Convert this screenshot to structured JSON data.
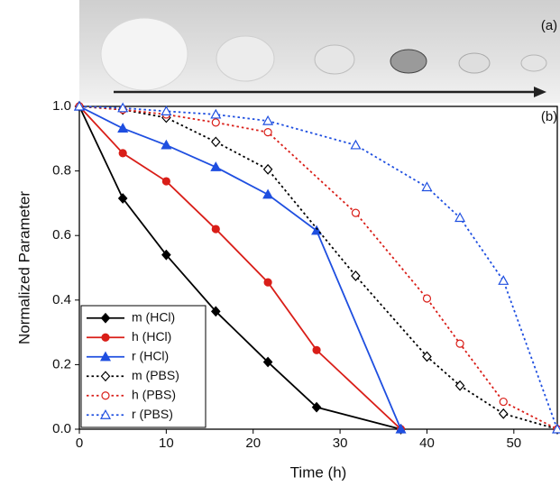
{
  "chart_data": {
    "type": "line",
    "xlabel": "Time (h)",
    "ylabel": "Normalized Parameter",
    "annotations": [
      "(a)",
      "(b)"
    ],
    "xlim": [
      0,
      55
    ],
    "xticks": [
      0,
      10,
      20,
      30,
      40,
      50
    ],
    "ylim": [
      0,
      1
    ],
    "yticks": [
      {
        "value": 0,
        "label": "0.0"
      },
      0.2,
      0.4,
      0.6,
      0.8,
      {
        "value": 1,
        "label": "1.0"
      }
    ],
    "legend": "lower left",
    "series": [
      {
        "name": "m (HCl)",
        "color": "#000000",
        "marker": "diamond",
        "filled": true,
        "dashed": false,
        "x": [
          0,
          5,
          10,
          15.7,
          21.7,
          27.3,
          37
        ],
        "values": [
          1,
          0.715,
          0.54,
          0.365,
          0.208,
          0.068,
          0
        ]
      },
      {
        "name": "h (HCl)",
        "color": "#d91e18",
        "marker": "circle",
        "filled": true,
        "dashed": false,
        "x": [
          0,
          5,
          10,
          15.7,
          21.7,
          27.3,
          37
        ],
        "values": [
          1,
          0.855,
          0.768,
          0.62,
          0.455,
          0.245,
          0
        ]
      },
      {
        "name": "r (HCl)",
        "color": "#1f4fe0",
        "marker": "triangle",
        "filled": true,
        "dashed": false,
        "x": [
          0,
          5,
          10,
          15.7,
          21.7,
          27.3,
          37
        ],
        "values": [
          1,
          0.932,
          0.88,
          0.812,
          0.727,
          0.615,
          0
        ]
      },
      {
        "name": "m (PBS)",
        "color": "#000000",
        "marker": "diamond",
        "filled": false,
        "dashed": true,
        "x": [
          0,
          5,
          10,
          15.7,
          21.7,
          31.8,
          40,
          43.8,
          48.8,
          55
        ],
        "values": [
          1,
          0.99,
          0.965,
          0.89,
          0.805,
          0.475,
          0.225,
          0.135,
          0.048,
          0
        ]
      },
      {
        "name": "h (PBS)",
        "color": "#d91e18",
        "marker": "circle",
        "filled": false,
        "dashed": true,
        "x": [
          0,
          5,
          10,
          15.7,
          21.7,
          31.8,
          40,
          43.8,
          48.8,
          55
        ],
        "values": [
          1,
          0.99,
          0.975,
          0.95,
          0.92,
          0.67,
          0.405,
          0.265,
          0.085,
          0
        ]
      },
      {
        "name": "r (PBS)",
        "color": "#1f4fe0",
        "marker": "triangle",
        "filled": false,
        "dashed": true,
        "x": [
          0,
          5,
          10,
          15.7,
          21.7,
          31.8,
          40,
          43.8,
          48.8,
          55
        ],
        "values": [
          1,
          0.995,
          0.985,
          0.975,
          0.955,
          0.88,
          0.75,
          0.655,
          0.46,
          0
        ]
      }
    ]
  }
}
